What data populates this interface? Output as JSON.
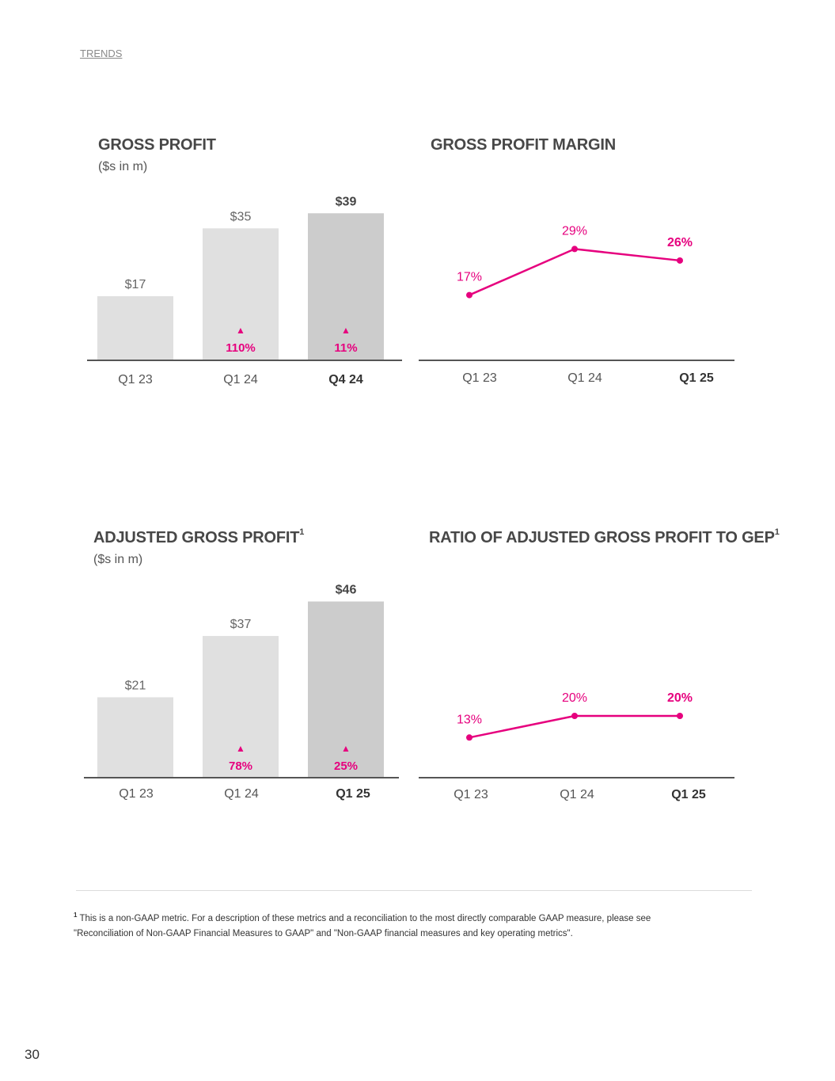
{
  "header": {
    "section_link": "TRENDS"
  },
  "colors": {
    "accent": "#e6007e",
    "bar_light": "#e0e0e0",
    "bar_dark": "#cccccc",
    "axis": "#555555",
    "text": "#444444"
  },
  "chart_data": [
    {
      "type": "bar",
      "title": "GROSS PROFIT",
      "title_sup": "",
      "subtitle": "($s in m)",
      "categories": [
        "Q1 23",
        "Q1 24",
        "Q4 24"
      ],
      "values": [
        17,
        35,
        39
      ],
      "value_labels": [
        "$17",
        "$35",
        "$39"
      ],
      "growth_labels": [
        "",
        "110%",
        "11%"
      ],
      "growth_indicator": "▲",
      "highlight_index": 2,
      "ylim": [
        0,
        42
      ]
    },
    {
      "type": "line",
      "title": "GROSS PROFIT MARGIN",
      "title_sup": "",
      "subtitle": "",
      "categories": [
        "Q1 23",
        "Q1 24",
        "Q1 25"
      ],
      "values": [
        17,
        29,
        26
      ],
      "value_labels": [
        "17%",
        "29%",
        "26%"
      ],
      "highlight_index": 2,
      "ylim": [
        0,
        33
      ]
    },
    {
      "type": "bar",
      "title": "ADJUSTED GROSS PROFIT",
      "title_sup": "1",
      "subtitle": "($s in m)",
      "categories": [
        "Q1 23",
        "Q1 24",
        "Q1 25"
      ],
      "values": [
        21,
        37,
        46
      ],
      "value_labels": [
        "$21",
        "$37",
        "$46"
      ],
      "growth_labels": [
        "",
        "78%",
        "25%"
      ],
      "growth_indicator": "▲",
      "highlight_index": 2,
      "ylim": [
        0,
        49
      ]
    },
    {
      "type": "line",
      "title": "RATIO OF ADJUSTED GROSS PROFIT TO GEP",
      "title_sup": "1",
      "subtitle": "",
      "categories": [
        "Q1 23",
        "Q1 24",
        "Q1 25"
      ],
      "values": [
        13,
        20,
        20
      ],
      "value_labels": [
        "13%",
        "20%",
        "20%"
      ],
      "highlight_index": 2,
      "ylim": [
        0,
        30
      ]
    }
  ],
  "footnote": {
    "marker": "1",
    "line1": "This is a non-GAAP metric. For a description of these metrics and a reconciliation to the most directly comparable GAAP measure, please see",
    "line2": "\"Reconciliation of Non-GAAP Financial Measures to GAAP\" and \"Non-GAAP financial measures and key operating metrics\"."
  },
  "page_number": "30"
}
